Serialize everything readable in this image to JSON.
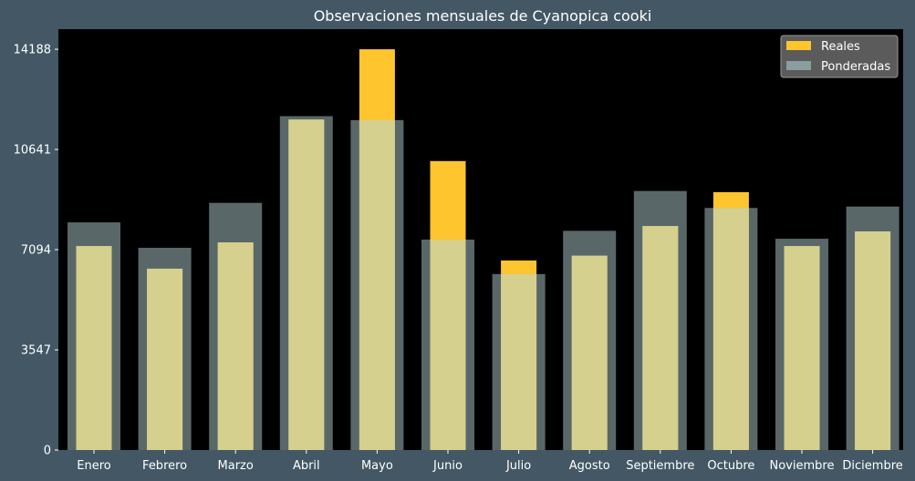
{
  "chart_data": {
    "type": "bar",
    "title": "Observaciones mensuales de Cyanopica cooki",
    "xlabel": "",
    "ylabel": "",
    "categories": [
      "Enero",
      "Febrero",
      "Marzo",
      "Abril",
      "Mayo",
      "Junio",
      "Julio",
      "Agosto",
      "Septiembre",
      "Octubre",
      "Noviembre",
      "Diciembre"
    ],
    "series": [
      {
        "name": "Reales",
        "color": "#ffc52e",
        "values": [
          7220,
          6420,
          7350,
          11700,
          14188,
          10230,
          6710,
          6880,
          7930,
          9130,
          7220,
          7740
        ]
      },
      {
        "name": "Ponderadas",
        "color": "#8a9ea0",
        "values": [
          8060,
          7160,
          8750,
          11820,
          11680,
          7450,
          6230,
          7760,
          9170,
          8570,
          7480,
          8620
        ]
      }
    ],
    "overlap_color": "#d5d08e",
    "yticks": [
      0,
      3547,
      7094,
      10641,
      14188
    ],
    "ylim": [
      0,
      14900
    ],
    "grid": false,
    "legend_position": "top-right",
    "plot_background": "#000000",
    "figure_background": "#435864"
  }
}
